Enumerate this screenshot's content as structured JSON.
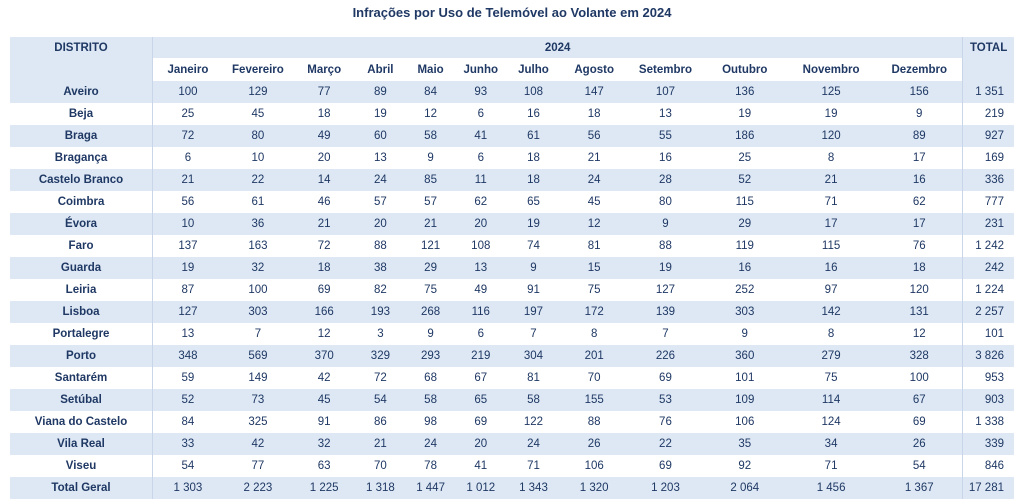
{
  "title": "Infrações por Uso de Telemóvel ao Volante em 2024",
  "colors": {
    "header_fill": "#dde8f4",
    "text_navy": "#1f3864",
    "separator_line": "#c9d5e8",
    "row_white": "#ffffff"
  },
  "table": {
    "corner_label": "DISTRITO",
    "year_label": "2024",
    "total_label": "TOTAL",
    "months": [
      "Janeiro",
      "Fevereiro",
      "Março",
      "Abril",
      "Maio",
      "Junho",
      "Julho",
      "Agosto",
      "Setembro",
      "Outubro",
      "Novembro",
      "Dezembro"
    ],
    "rows": [
      {
        "district": "Aveiro",
        "values": [
          "100",
          "129",
          "77",
          "89",
          "84",
          "93",
          "108",
          "147",
          "107",
          "136",
          "125",
          "156"
        ],
        "total": "1 351"
      },
      {
        "district": "Beja",
        "values": [
          "25",
          "45",
          "18",
          "19",
          "12",
          "6",
          "16",
          "18",
          "13",
          "19",
          "19",
          "9"
        ],
        "total": "219"
      },
      {
        "district": "Braga",
        "values": [
          "72",
          "80",
          "49",
          "60",
          "58",
          "41",
          "61",
          "56",
          "55",
          "186",
          "120",
          "89"
        ],
        "total": "927"
      },
      {
        "district": "Bragança",
        "values": [
          "6",
          "10",
          "20",
          "13",
          "9",
          "6",
          "18",
          "21",
          "16",
          "25",
          "8",
          "17"
        ],
        "total": "169"
      },
      {
        "district": "Castelo Branco",
        "values": [
          "21",
          "22",
          "14",
          "24",
          "85",
          "11",
          "18",
          "24",
          "28",
          "52",
          "21",
          "16"
        ],
        "total": "336"
      },
      {
        "district": "Coimbra",
        "values": [
          "56",
          "61",
          "46",
          "57",
          "57",
          "62",
          "65",
          "45",
          "80",
          "115",
          "71",
          "62"
        ],
        "total": "777"
      },
      {
        "district": "Évora",
        "values": [
          "10",
          "36",
          "21",
          "20",
          "21",
          "20",
          "19",
          "12",
          "9",
          "29",
          "17",
          "17"
        ],
        "total": "231"
      },
      {
        "district": "Faro",
        "values": [
          "137",
          "163",
          "72",
          "88",
          "121",
          "108",
          "74",
          "81",
          "88",
          "119",
          "115",
          "76"
        ],
        "total": "1 242"
      },
      {
        "district": "Guarda",
        "values": [
          "19",
          "32",
          "18",
          "38",
          "29",
          "13",
          "9",
          "15",
          "19",
          "16",
          "16",
          "18"
        ],
        "total": "242"
      },
      {
        "district": "Leiria",
        "values": [
          "87",
          "100",
          "69",
          "82",
          "75",
          "49",
          "91",
          "75",
          "127",
          "252",
          "97",
          "120"
        ],
        "total": "1 224"
      },
      {
        "district": "Lisboa",
        "values": [
          "127",
          "303",
          "166",
          "193",
          "268",
          "116",
          "197",
          "172",
          "139",
          "303",
          "142",
          "131"
        ],
        "total": "2 257"
      },
      {
        "district": "Portalegre",
        "values": [
          "13",
          "7",
          "12",
          "3",
          "9",
          "6",
          "7",
          "8",
          "7",
          "9",
          "8",
          "12"
        ],
        "total": "101"
      },
      {
        "district": "Porto",
        "values": [
          "348",
          "569",
          "370",
          "329",
          "293",
          "219",
          "304",
          "201",
          "226",
          "360",
          "279",
          "328"
        ],
        "total": "3 826"
      },
      {
        "district": "Santarém",
        "values": [
          "59",
          "149",
          "42",
          "72",
          "68",
          "67",
          "81",
          "70",
          "69",
          "101",
          "75",
          "100"
        ],
        "total": "953"
      },
      {
        "district": "Setúbal",
        "values": [
          "52",
          "73",
          "45",
          "54",
          "58",
          "65",
          "58",
          "155",
          "53",
          "109",
          "114",
          "67"
        ],
        "total": "903"
      },
      {
        "district": "Viana do Castelo",
        "values": [
          "84",
          "325",
          "91",
          "86",
          "98",
          "69",
          "122",
          "88",
          "76",
          "106",
          "124",
          "69"
        ],
        "total": "1 338"
      },
      {
        "district": "Vila Real",
        "values": [
          "33",
          "42",
          "32",
          "21",
          "24",
          "20",
          "24",
          "26",
          "22",
          "35",
          "34",
          "26"
        ],
        "total": "339"
      },
      {
        "district": "Viseu",
        "values": [
          "54",
          "77",
          "63",
          "70",
          "78",
          "41",
          "71",
          "106",
          "69",
          "92",
          "71",
          "54"
        ],
        "total": "846"
      }
    ],
    "total_row": {
      "district": "Total Geral",
      "values": [
        "1 303",
        "2 223",
        "1 225",
        "1 318",
        "1 447",
        "1 012",
        "1 343",
        "1 320",
        "1 203",
        "2 064",
        "1 456",
        "1 367"
      ],
      "total": "17 281"
    }
  }
}
